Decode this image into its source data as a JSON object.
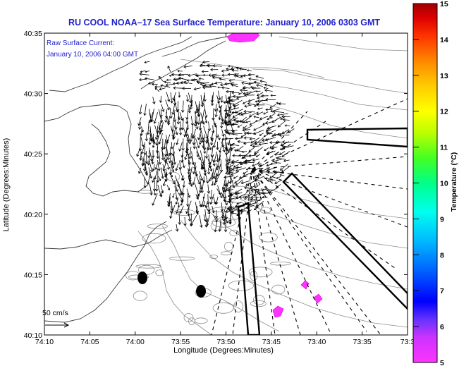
{
  "chart_data": {
    "type": "scatter",
    "title": "RU COOL  NOAA–17  Sea Surface Temperature:  January 10, 2006 0303 GMT",
    "xlabel": "Longitude (Degrees:Minutes)",
    "ylabel": "Latitude (Degrees:Minutes)",
    "x_ticks": [
      "74:10",
      "74:05",
      "74:00",
      "73:55",
      "73:50",
      "73:45",
      "73:40",
      "73:35",
      "73:3"
    ],
    "y_ticks": [
      "40:35",
      "40:30",
      "40:25",
      "40:20",
      "40:15",
      "40:10"
    ],
    "current_label": "Raw Surface Current:",
    "current_time": "January 10, 2006 04:00 GMT",
    "scale_label": "50 cm/s",
    "colorbar": {
      "label": "Temperature (°C)",
      "ticks": [
        "15",
        "14",
        "13",
        "12",
        "11",
        "10",
        "9",
        "8",
        "7",
        "6",
        "5"
      ],
      "min": 5,
      "max": 15,
      "colors": [
        "#ff33ff",
        "#cc33ff",
        "#7733ff",
        "#0000ff",
        "#0066ff",
        "#00bbff",
        "#00ffee",
        "#00ff99",
        "#33ff33",
        "#aaff00",
        "#ffff00",
        "#ffcc00",
        "#ff8800",
        "#ff3300",
        "#dd0000",
        "#aa0000"
      ]
    },
    "grid": false
  }
}
